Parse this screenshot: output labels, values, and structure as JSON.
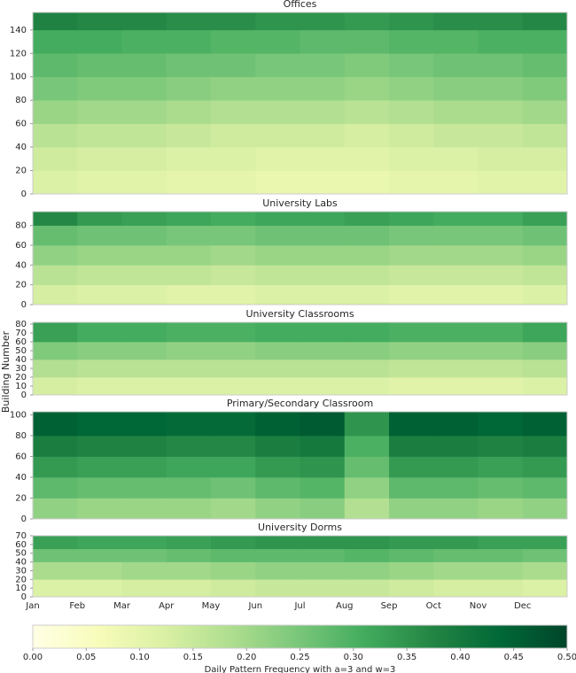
{
  "ylabel": "Building Number",
  "months": [
    "Jan",
    "Feb",
    "Mar",
    "Apr",
    "May",
    "Jun",
    "Jul",
    "Aug",
    "Sep",
    "Oct",
    "Nov",
    "Dec"
  ],
  "chart_data": [
    {
      "type": "heatmap",
      "title": "Offices",
      "ylim": [
        0,
        155
      ],
      "yticks": [
        0,
        20,
        40,
        60,
        80,
        100,
        120,
        140
      ],
      "y_bins": [
        0,
        20,
        40,
        60,
        80,
        100,
        120,
        140,
        155
      ],
      "values": [
        [
          0.12,
          0.11,
          0.11,
          0.1,
          0.1,
          0.09,
          0.09,
          0.09,
          0.1,
          0.1,
          0.11,
          0.11
        ],
        [
          0.14,
          0.13,
          0.13,
          0.12,
          0.12,
          0.11,
          0.11,
          0.11,
          0.12,
          0.12,
          0.13,
          0.13
        ],
        [
          0.17,
          0.16,
          0.16,
          0.15,
          0.14,
          0.14,
          0.14,
          0.13,
          0.14,
          0.15,
          0.15,
          0.16
        ],
        [
          0.21,
          0.2,
          0.2,
          0.19,
          0.18,
          0.18,
          0.18,
          0.17,
          0.18,
          0.19,
          0.19,
          0.2
        ],
        [
          0.25,
          0.24,
          0.24,
          0.23,
          0.22,
          0.22,
          0.22,
          0.21,
          0.22,
          0.23,
          0.23,
          0.24
        ],
        [
          0.28,
          0.27,
          0.27,
          0.26,
          0.26,
          0.25,
          0.25,
          0.24,
          0.25,
          0.26,
          0.26,
          0.27
        ],
        [
          0.31,
          0.31,
          0.3,
          0.3,
          0.29,
          0.29,
          0.28,
          0.28,
          0.29,
          0.29,
          0.3,
          0.3
        ],
        [
          0.38,
          0.37,
          0.37,
          0.36,
          0.36,
          0.35,
          0.35,
          0.34,
          0.35,
          0.36,
          0.36,
          0.37
        ]
      ]
    },
    {
      "type": "heatmap",
      "title": "University Labs",
      "ylim": [
        0,
        94
      ],
      "yticks": [
        0,
        20,
        40,
        60,
        80
      ],
      "y_bins": [
        0,
        20,
        40,
        60,
        80,
        94
      ],
      "values": [
        [
          0.13,
          0.12,
          0.12,
          0.11,
          0.11,
          0.12,
          0.12,
          0.12,
          0.11,
          0.11,
          0.11,
          0.12
        ],
        [
          0.17,
          0.16,
          0.16,
          0.16,
          0.15,
          0.16,
          0.16,
          0.16,
          0.15,
          0.15,
          0.15,
          0.16
        ],
        [
          0.22,
          0.21,
          0.21,
          0.21,
          0.2,
          0.21,
          0.21,
          0.21,
          0.2,
          0.2,
          0.2,
          0.21
        ],
        [
          0.27,
          0.26,
          0.26,
          0.25,
          0.25,
          0.26,
          0.26,
          0.26,
          0.25,
          0.25,
          0.25,
          0.26
        ],
        [
          0.37,
          0.34,
          0.33,
          0.32,
          0.31,
          0.32,
          0.32,
          0.33,
          0.32,
          0.31,
          0.31,
          0.33
        ]
      ]
    },
    {
      "type": "heatmap",
      "title": "University Classrooms",
      "ylim": [
        0,
        82
      ],
      "yticks": [
        0,
        10,
        20,
        30,
        40,
        50,
        60,
        70,
        80
      ],
      "y_bins": [
        0,
        20,
        40,
        60,
        82
      ],
      "values": [
        [
          0.13,
          0.12,
          0.12,
          0.12,
          0.12,
          0.12,
          0.12,
          0.12,
          0.11,
          0.11,
          0.11,
          0.12
        ],
        [
          0.18,
          0.17,
          0.17,
          0.17,
          0.17,
          0.17,
          0.17,
          0.17,
          0.16,
          0.16,
          0.16,
          0.17
        ],
        [
          0.24,
          0.23,
          0.23,
          0.22,
          0.22,
          0.23,
          0.23,
          0.23,
          0.22,
          0.22,
          0.22,
          0.23
        ],
        [
          0.33,
          0.31,
          0.31,
          0.3,
          0.3,
          0.31,
          0.31,
          0.31,
          0.3,
          0.3,
          0.3,
          0.32
        ]
      ]
    },
    {
      "type": "heatmap",
      "title": "Primary/Secondary Classroom",
      "ylim": [
        0,
        103
      ],
      "yticks": [
        0,
        20,
        40,
        60,
        80,
        100
      ],
      "y_bins": [
        0,
        20,
        40,
        60,
        80,
        103
      ],
      "values": [
        [
          0.22,
          0.21,
          0.21,
          0.21,
          0.2,
          0.22,
          0.23,
          0.18,
          0.22,
          0.22,
          0.21,
          0.22
        ],
        [
          0.28,
          0.27,
          0.27,
          0.27,
          0.26,
          0.28,
          0.29,
          0.22,
          0.28,
          0.28,
          0.27,
          0.28
        ],
        [
          0.34,
          0.33,
          0.33,
          0.32,
          0.32,
          0.34,
          0.35,
          0.27,
          0.34,
          0.34,
          0.33,
          0.34
        ],
        [
          0.39,
          0.38,
          0.38,
          0.37,
          0.37,
          0.39,
          0.4,
          0.3,
          0.39,
          0.39,
          0.38,
          0.39
        ],
        [
          0.45,
          0.44,
          0.44,
          0.43,
          0.43,
          0.45,
          0.46,
          0.35,
          0.45,
          0.45,
          0.44,
          0.45
        ]
      ]
    },
    {
      "type": "heatmap",
      "title": "University Dorms",
      "ylim": [
        0,
        70
      ],
      "yticks": [
        0,
        10,
        20,
        30,
        40,
        50,
        60,
        70
      ],
      "y_bins": [
        0,
        20,
        40,
        55,
        70
      ],
      "values": [
        [
          0.12,
          0.12,
          0.13,
          0.13,
          0.14,
          0.15,
          0.15,
          0.15,
          0.14,
          0.13,
          0.13,
          0.12
        ],
        [
          0.19,
          0.19,
          0.2,
          0.2,
          0.21,
          0.22,
          0.22,
          0.22,
          0.21,
          0.2,
          0.2,
          0.19
        ],
        [
          0.26,
          0.26,
          0.26,
          0.27,
          0.28,
          0.28,
          0.28,
          0.29,
          0.28,
          0.27,
          0.27,
          0.26
        ],
        [
          0.33,
          0.32,
          0.32,
          0.33,
          0.34,
          0.35,
          0.35,
          0.35,
          0.34,
          0.34,
          0.33,
          0.33
        ]
      ]
    },
    {
      "type": "colorbar",
      "xlabel": "Daily Pattern Frequency with a=3 and w=3",
      "xlim": [
        0,
        0.5
      ],
      "colors": [
        "#ffffe5",
        "#f7fcb9",
        "#d9f0a3",
        "#addd8e",
        "#78c679",
        "#41ab5d",
        "#238443",
        "#006837",
        "#004529"
      ],
      "xticks": [
        {
          "value": 0,
          "label": "0.00"
        },
        {
          "value": 0.05,
          "label": "0.05"
        },
        {
          "value": 0.1,
          "label": "0.10"
        },
        {
          "value": 0.15,
          "label": "0.15"
        },
        {
          "value": 0.2,
          "label": "0.20"
        },
        {
          "value": 0.25,
          "label": "0.25"
        },
        {
          "value": 0.3,
          "label": "0.30"
        },
        {
          "value": 0.35,
          "label": "0.35"
        },
        {
          "value": 0.4,
          "label": "0.40"
        },
        {
          "value": 0.45,
          "label": "0.45"
        },
        {
          "value": 0.5,
          "label": "0.50"
        }
      ]
    }
  ]
}
